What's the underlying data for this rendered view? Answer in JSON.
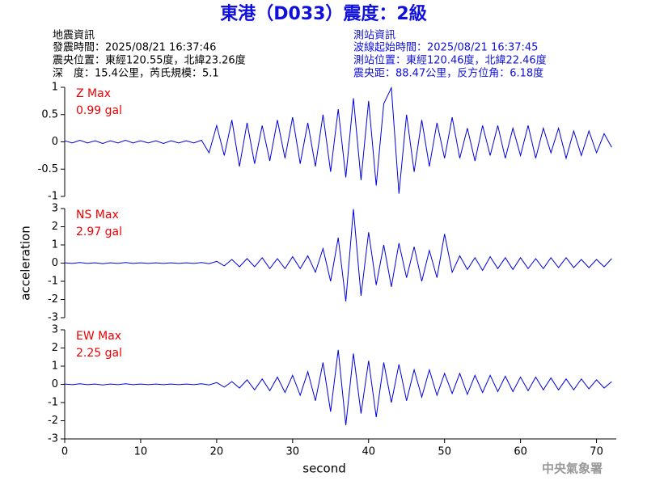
{
  "header": {
    "title": "東港（D033）震度：2級",
    "left": [
      "地震資訊",
      "發震時間：2025/08/21 16:37:46",
      "震央位置：東經120.55度，北緯23.26度",
      "深　度：15.4公里，芮氏規模：5.1"
    ],
    "right": [
      "測站資訊",
      "波線起始時間：2025/08/21 16:37:45",
      "測站位置：東經120.46度，北緯22.46度",
      "震央距：88.47公里，反方位角：6.18度"
    ],
    "footer": "中央氣象署"
  },
  "chart_data": [
    {
      "type": "line",
      "color": "#0000dd",
      "annotation": [
        "Z Max",
        "0.99 gal"
      ],
      "annotation_color": "#ee0000",
      "xlim": [
        0,
        72.6
      ],
      "ylim": [
        -1,
        1
      ],
      "yticks": [
        -1,
        -0.5,
        0,
        0.5,
        1
      ],
      "x": [
        0,
        1,
        2,
        3,
        4,
        5,
        6,
        7,
        8,
        9,
        10,
        11,
        12,
        13,
        14,
        15,
        16,
        17,
        18,
        19,
        20,
        21,
        22,
        23,
        24,
        25,
        26,
        27,
        28,
        29,
        30,
        31,
        32,
        33,
        34,
        35,
        36,
        37,
        38,
        39,
        40,
        41,
        42,
        43,
        44,
        45,
        46,
        47,
        48,
        49,
        50,
        51,
        52,
        53,
        54,
        55,
        56,
        57,
        58,
        59,
        60,
        61,
        62,
        63,
        64,
        65,
        66,
        67,
        68,
        69,
        70,
        71,
        72
      ],
      "values": [
        0.02,
        -0.02,
        0.03,
        -0.02,
        0.02,
        -0.03,
        0.02,
        -0.02,
        0.03,
        -0.02,
        0.02,
        -0.02,
        0.02,
        -0.03,
        0.02,
        -0.02,
        0.02,
        -0.02,
        0.03,
        -0.2,
        0.3,
        -0.25,
        0.4,
        -0.45,
        0.35,
        -0.4,
        0.3,
        -0.35,
        0.4,
        -0.3,
        0.45,
        -0.4,
        0.35,
        -0.45,
        0.5,
        -0.55,
        0.6,
        -0.65,
        0.8,
        -0.7,
        0.75,
        -0.8,
        0.7,
        0.99,
        -0.95,
        0.5,
        -0.55,
        0.4,
        -0.45,
        0.35,
        -0.3,
        0.45,
        -0.3,
        0.25,
        -0.35,
        0.3,
        -0.25,
        0.3,
        -0.3,
        0.25,
        -0.25,
        0.3,
        -0.3,
        0.25,
        -0.2,
        0.25,
        -0.3,
        0.2,
        -0.25,
        0.2,
        -0.2,
        0.15,
        -0.1
      ]
    },
    {
      "type": "line",
      "color": "#0000dd",
      "annotation": [
        "NS Max",
        "2.97 gal"
      ],
      "annotation_color": "#ee0000",
      "ylabel": "acceleration",
      "xlim": [
        0,
        72.6
      ],
      "ylim": [
        -3,
        3
      ],
      "yticks": [
        -3,
        -2,
        -1,
        0,
        1,
        2,
        3
      ],
      "x": [
        0,
        1,
        2,
        3,
        4,
        5,
        6,
        7,
        8,
        9,
        10,
        11,
        12,
        13,
        14,
        15,
        16,
        17,
        18,
        19,
        20,
        21,
        22,
        23,
        24,
        25,
        26,
        27,
        28,
        29,
        30,
        31,
        32,
        33,
        34,
        35,
        36,
        37,
        38,
        39,
        40,
        41,
        42,
        43,
        44,
        45,
        46,
        47,
        48,
        49,
        50,
        51,
        52,
        53,
        54,
        55,
        56,
        57,
        58,
        59,
        60,
        61,
        62,
        63,
        64,
        65,
        66,
        67,
        68,
        69,
        70,
        71,
        72
      ],
      "values": [
        0.02,
        -0.02,
        0.03,
        -0.02,
        0.02,
        -0.03,
        0.02,
        -0.02,
        0.03,
        -0.02,
        0.02,
        -0.02,
        0.02,
        -0.02,
        0.02,
        -0.02,
        0.02,
        -0.02,
        0.03,
        -0.03,
        0.1,
        -0.15,
        0.2,
        -0.2,
        0.25,
        -0.2,
        0.3,
        -0.3,
        0.25,
        -0.3,
        0.35,
        -0.3,
        0.4,
        -0.5,
        0.8,
        -1.0,
        1.4,
        -2.1,
        2.97,
        -1.8,
        1.7,
        -1.2,
        1.0,
        -1.3,
        1.1,
        -0.8,
        0.9,
        -1.0,
        0.7,
        -0.8,
        1.6,
        -0.5,
        0.4,
        -0.35,
        0.3,
        -0.4,
        0.35,
        -0.3,
        0.3,
        -0.35,
        0.3,
        -0.3,
        0.25,
        -0.3,
        0.3,
        -0.25,
        0.3,
        -0.25,
        0.2,
        -0.25,
        0.2,
        -0.2,
        0.25
      ]
    },
    {
      "type": "line",
      "color": "#0000dd",
      "annotation": [
        "EW Max",
        "2.25 gal"
      ],
      "annotation_color": "#ee0000",
      "xlabel": "second",
      "xlim": [
        0,
        72.6
      ],
      "xticks": [
        0,
        10,
        20,
        30,
        40,
        50,
        60,
        70
      ],
      "ylim": [
        -3,
        3
      ],
      "yticks": [
        -3,
        -2,
        -1,
        0,
        1,
        2,
        3
      ],
      "x": [
        0,
        1,
        2,
        3,
        4,
        5,
        6,
        7,
        8,
        9,
        10,
        11,
        12,
        13,
        14,
        15,
        16,
        17,
        18,
        19,
        20,
        21,
        22,
        23,
        24,
        25,
        26,
        27,
        28,
        29,
        30,
        31,
        32,
        33,
        34,
        35,
        36,
        37,
        38,
        39,
        40,
        41,
        42,
        43,
        44,
        45,
        46,
        47,
        48,
        49,
        50,
        51,
        52,
        53,
        54,
        55,
        56,
        57,
        58,
        59,
        60,
        61,
        62,
        63,
        64,
        65,
        66,
        67,
        68,
        69,
        70,
        71,
        72
      ],
      "values": [
        0.02,
        -0.02,
        0.03,
        -0.02,
        0.02,
        -0.03,
        0.02,
        -0.02,
        0.03,
        -0.02,
        0.02,
        -0.02,
        0.02,
        -0.02,
        0.02,
        -0.02,
        0.02,
        -0.02,
        0.03,
        -0.03,
        0.1,
        -0.15,
        0.15,
        -0.2,
        0.25,
        -0.3,
        0.3,
        -0.35,
        0.4,
        -0.45,
        0.5,
        -0.6,
        0.7,
        -0.9,
        1.2,
        -1.5,
        1.9,
        -2.25,
        1.7,
        -1.6,
        1.3,
        -1.8,
        1.2,
        -1.0,
        1.1,
        -0.9,
        0.8,
        -0.7,
        0.8,
        -0.6,
        0.6,
        -0.5,
        0.6,
        -0.55,
        0.5,
        -0.45,
        0.5,
        -0.4,
        0.45,
        -0.4,
        0.4,
        -0.35,
        0.4,
        -0.3,
        0.35,
        -0.3,
        0.3,
        -0.3,
        0.3,
        -0.25,
        0.25,
        -0.2,
        0.15
      ]
    }
  ]
}
